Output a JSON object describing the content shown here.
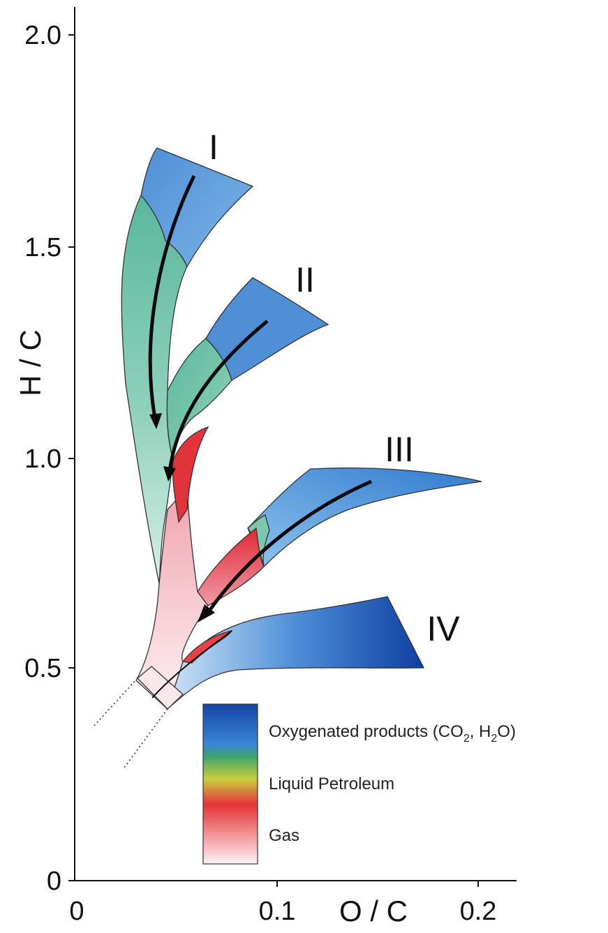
{
  "axes": {
    "y_title": "H / C",
    "x_title": "O / C",
    "y_ticks": [
      "0",
      "0.5",
      "1.0",
      "1.5",
      "2.0"
    ],
    "x_ticks": [
      "0",
      "0.1",
      "0.2"
    ]
  },
  "pathways": {
    "i": "I",
    "ii": "II",
    "iii": "III",
    "iv": "IV"
  },
  "legend": {
    "oxygenated": {
      "pre": "Oxygenated products (CO",
      "sub1": "2",
      "mid": ", H",
      "sub2": "2",
      "post": "O)"
    },
    "liquid": "Liquid Petroleum",
    "gas": "Gas"
  },
  "colors": {
    "oxygenated": "#3b86d6",
    "oxygenated_dark": "#1248a8",
    "liquid": "#5db99a",
    "gas": "#e0343a",
    "gas_light": "#fbe6ec"
  }
}
